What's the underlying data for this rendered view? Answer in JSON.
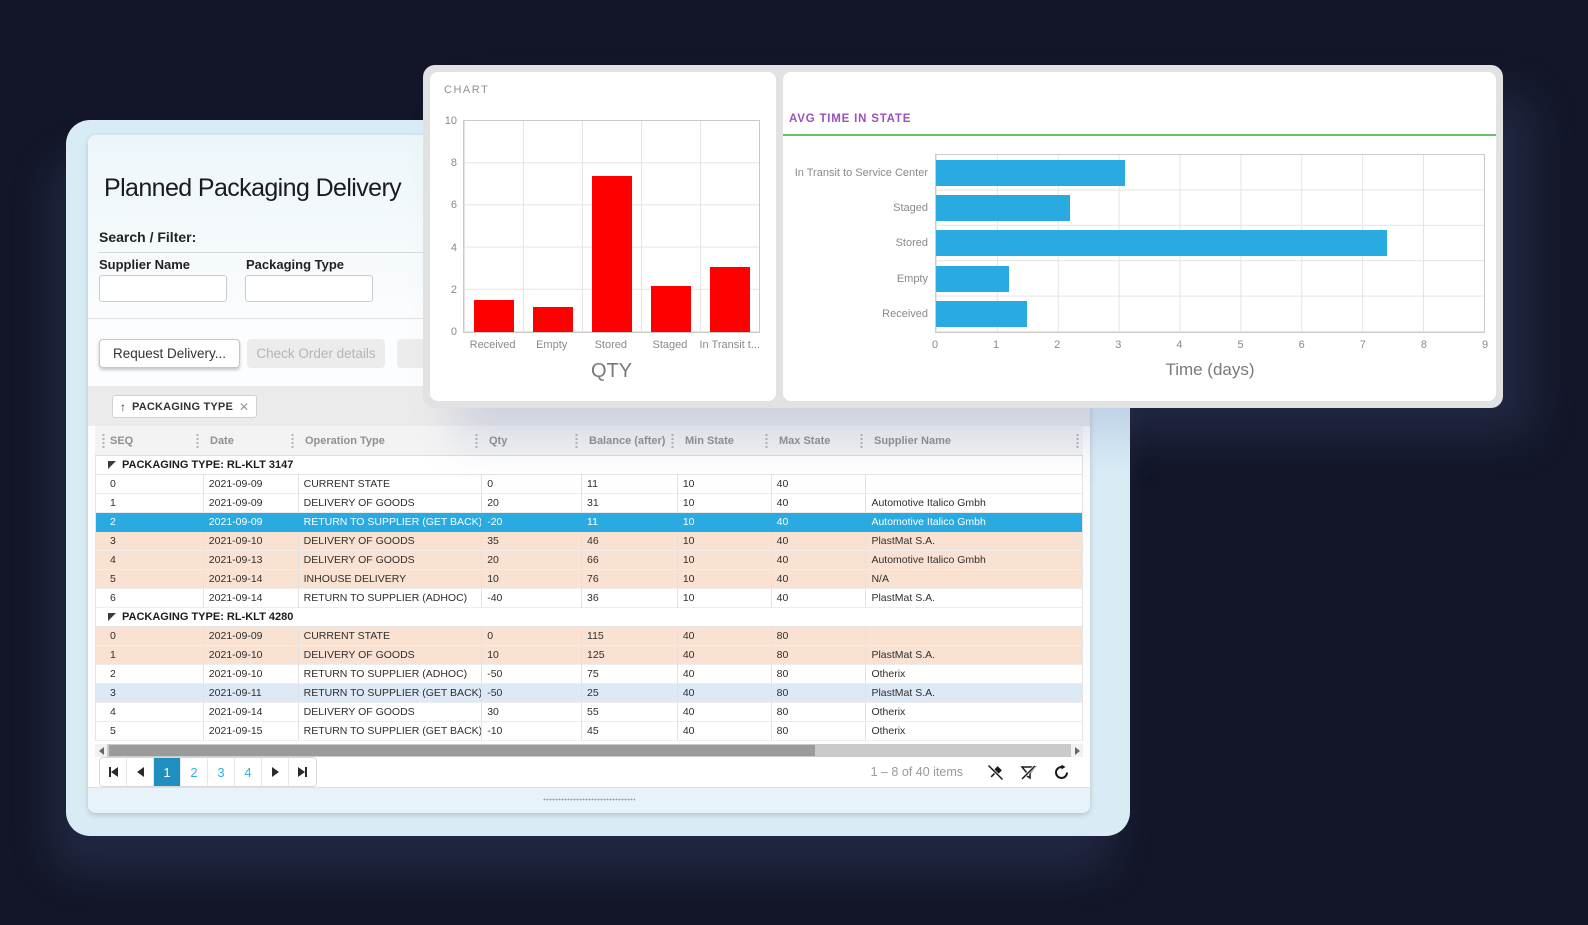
{
  "window": {
    "title": "Planned Packaging Delivery",
    "search_filter_label": "Search / Filter:",
    "filters": [
      {
        "label": "Supplier Name",
        "value": ""
      },
      {
        "label": "Packaging Type",
        "value": ""
      }
    ],
    "buttons": [
      {
        "label": "Request Delivery...",
        "enabled": true
      },
      {
        "label": "Check Order details",
        "enabled": false
      },
      {
        "label": "",
        "enabled": false
      }
    ],
    "group_chip": {
      "label": "PACKAGING TYPE"
    }
  },
  "grid": {
    "columns": [
      "SEQ",
      "Date",
      "Operation Type",
      "Qty",
      "Balance (after)",
      "Min State",
      "Max State",
      "Supplier Name"
    ],
    "colors": {
      "selected": "#29abe2",
      "peach": "#fae2d2",
      "blue": "#dde9f5"
    },
    "groups": [
      {
        "label": "PACKAGING TYPE: RL-KLT 3147",
        "rows": [
          {
            "cells": [
              "0",
              "2021-09-09",
              "CURRENT STATE",
              "0",
              "11",
              "10",
              "40",
              ""
            ],
            "bg": "white"
          },
          {
            "cells": [
              "1",
              "2021-09-09",
              "DELIVERY OF GOODS",
              "20",
              "31",
              "10",
              "40",
              "Automotive Italico Gmbh"
            ],
            "bg": "white"
          },
          {
            "cells": [
              "2",
              "2021-09-09",
              "RETURN TO SUPPLIER (GET BACK)",
              "-20",
              "11",
              "10",
              "40",
              "Automotive Italico Gmbh"
            ],
            "bg": "selected"
          },
          {
            "cells": [
              "3",
              "2021-09-10",
              "DELIVERY OF GOODS",
              "35",
              "46",
              "10",
              "40",
              "PlastMat S.A."
            ],
            "bg": "peach"
          },
          {
            "cells": [
              "4",
              "2021-09-13",
              "DELIVERY OF GOODS",
              "20",
              "66",
              "10",
              "40",
              "Automotive Italico Gmbh"
            ],
            "bg": "peach"
          },
          {
            "cells": [
              "5",
              "2021-09-14",
              "INHOUSE DELIVERY",
              "10",
              "76",
              "10",
              "40",
              "N/A"
            ],
            "bg": "peach"
          },
          {
            "cells": [
              "6",
              "2021-09-14",
              "RETURN TO SUPPLIER (ADHOC)",
              "-40",
              "36",
              "10",
              "40",
              "PlastMat S.A."
            ],
            "bg": "white"
          }
        ]
      },
      {
        "label": "PACKAGING TYPE: RL-KLT 4280",
        "rows": [
          {
            "cells": [
              "0",
              "2021-09-09",
              "CURRENT STATE",
              "0",
              "115",
              "40",
              "80",
              ""
            ],
            "bg": "peach"
          },
          {
            "cells": [
              "1",
              "2021-09-10",
              "DELIVERY OF GOODS",
              "10",
              "125",
              "40",
              "80",
              "PlastMat S.A."
            ],
            "bg": "peach"
          },
          {
            "cells": [
              "2",
              "2021-09-10",
              "RETURN TO SUPPLIER (ADHOC)",
              "-50",
              "75",
              "40",
              "80",
              "Otherix"
            ],
            "bg": "white"
          },
          {
            "cells": [
              "3",
              "2021-09-11",
              "RETURN TO SUPPLIER (GET BACK)",
              "-50",
              "25",
              "40",
              "80",
              "PlastMat S.A."
            ],
            "bg": "blue"
          },
          {
            "cells": [
              "4",
              "2021-09-14",
              "DELIVERY OF GOODS",
              "30",
              "55",
              "40",
              "80",
              "Otherix"
            ],
            "bg": "white"
          },
          {
            "cells": [
              "5",
              "2021-09-15",
              "RETURN TO SUPPLIER (GET BACK)",
              "-10",
              "45",
              "40",
              "80",
              "Otherix"
            ],
            "bg": "white"
          }
        ]
      }
    ]
  },
  "pager": {
    "pages": [
      "1",
      "2",
      "3",
      "4"
    ],
    "active_page": "1",
    "info": "1 – 8 of 40 items"
  },
  "chart_data": [
    {
      "type": "bar",
      "orientation": "vertical",
      "title": "CHART",
      "categories": [
        "Received",
        "Empty",
        "Stored",
        "Staged",
        "In Transit t..."
      ],
      "values": [
        1.5,
        1.2,
        7.4,
        2.2,
        3.1
      ],
      "xlabel": "QTY",
      "ylabel": "",
      "ylim": [
        0,
        10
      ],
      "yticks": [
        0,
        2,
        4,
        6,
        8,
        10
      ],
      "bar_color": "#ff0000",
      "grid": true
    },
    {
      "type": "bar",
      "orientation": "horizontal",
      "title": "AVG TIME IN STATE",
      "categories": [
        "In Transit to Service Center",
        "Staged",
        "Stored",
        "Empty",
        "Received"
      ],
      "values": [
        3.1,
        2.2,
        7.4,
        1.2,
        1.5
      ],
      "xlabel": "Time (days)",
      "xlim": [
        0,
        9
      ],
      "xticks": [
        0,
        1,
        2,
        3,
        4,
        5,
        6,
        7,
        8,
        9
      ],
      "bar_color": "#29abe2",
      "title_color": "#9b51bd",
      "rule_color": "#6abf69",
      "grid": true
    }
  ]
}
